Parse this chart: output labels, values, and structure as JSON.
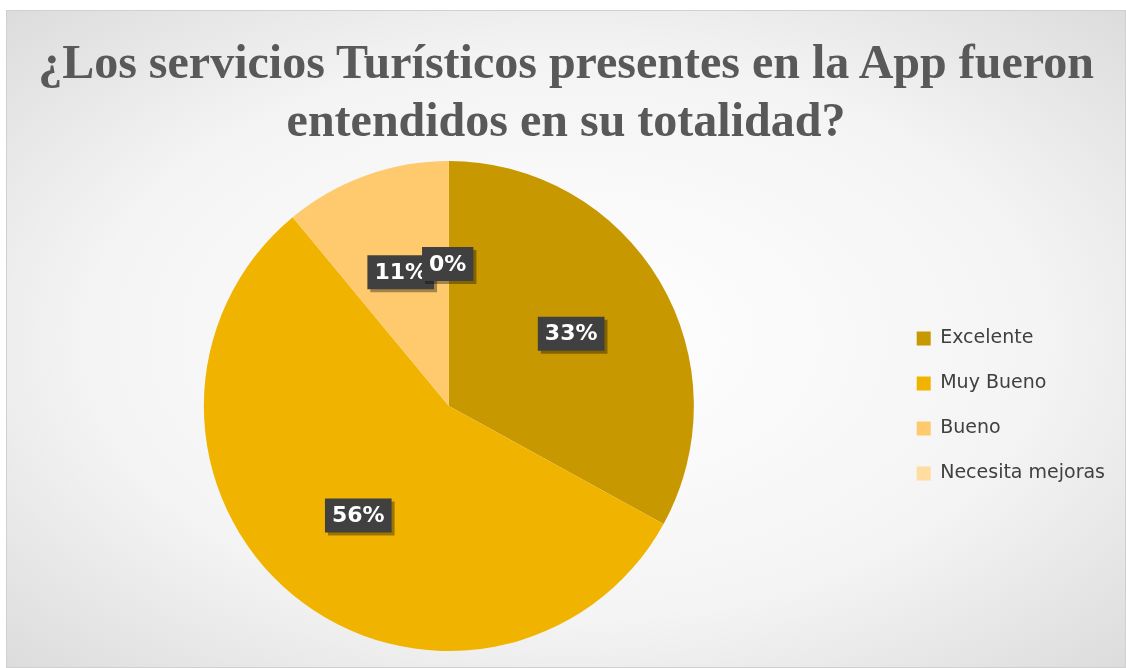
{
  "chart_data": {
    "type": "pie",
    "title": "¿Los servicios Turísticos presentes en la App fueron entendidos en su totalidad?",
    "categories": [
      "Excelente",
      "Muy Bueno",
      "Bueno",
      "Necesita mejoras"
    ],
    "values": [
      33,
      56,
      11,
      0
    ],
    "colors": [
      "#c89800",
      "#f0b400",
      "#ffc96e",
      "#ffdca0"
    ],
    "value_labels": [
      "33%",
      "56%",
      "11%",
      "0%"
    ],
    "legend": "right"
  }
}
